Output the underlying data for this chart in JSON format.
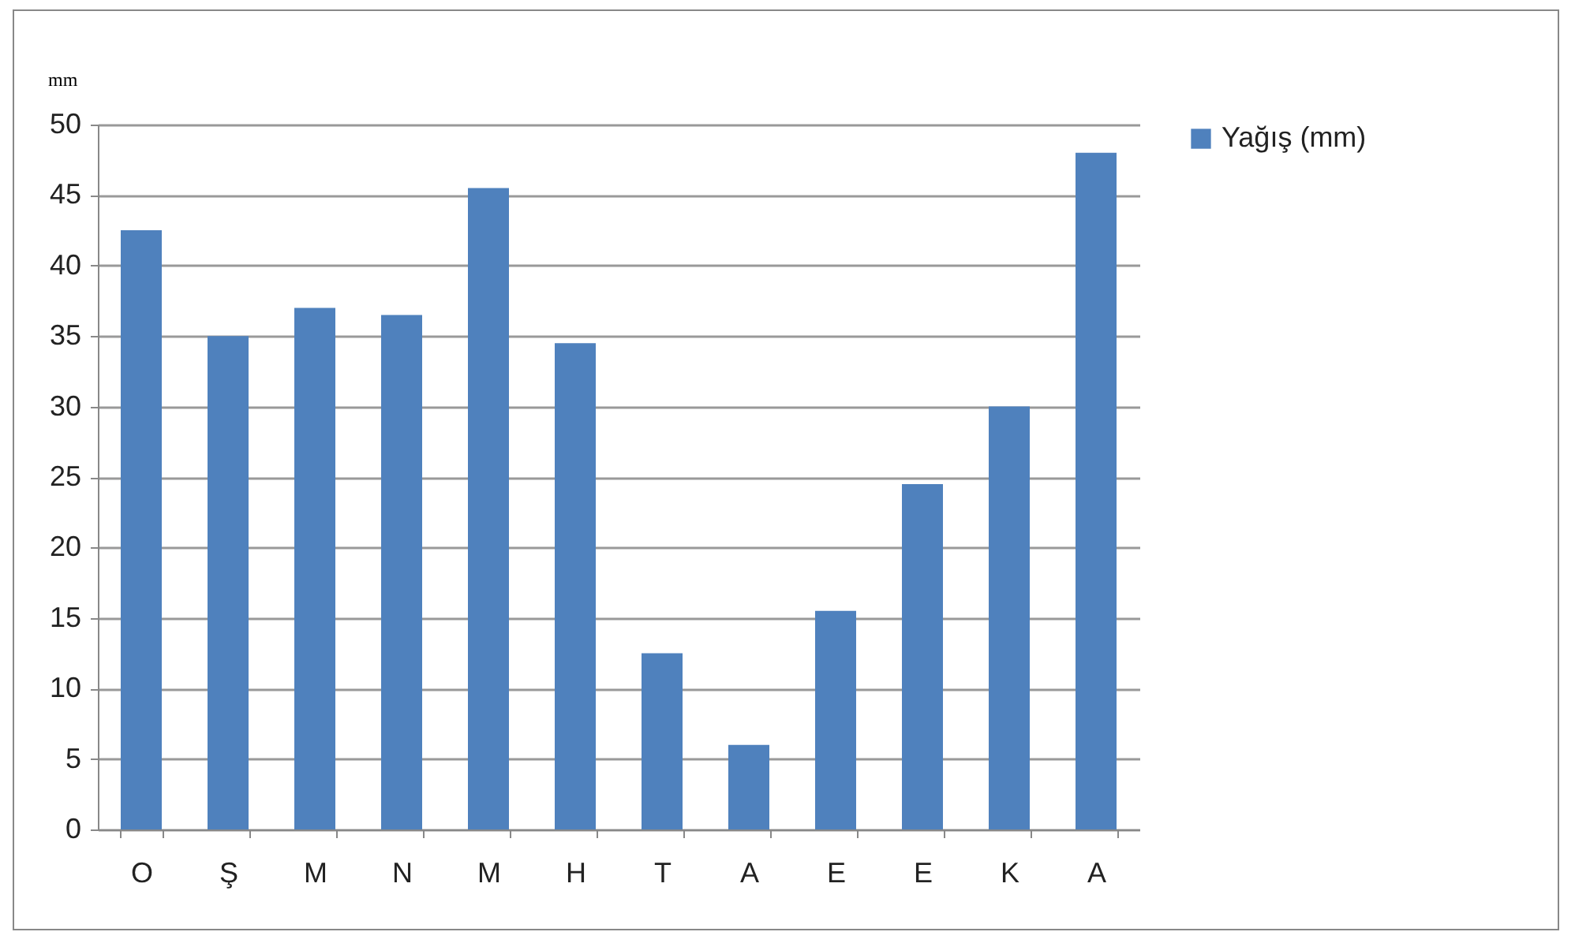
{
  "chart_data": {
    "type": "bar",
    "ylabel": "mm",
    "categories": [
      "O",
      "Ş",
      "M",
      "N",
      "M",
      "H",
      "T",
      "A",
      "E",
      "E",
      "K",
      "A"
    ],
    "series": [
      {
        "name": "Yağış (mm)",
        "color": "#4f81bd",
        "values": [
          42.5,
          35,
          37,
          36.5,
          45.5,
          34.5,
          12.5,
          6,
          15.5,
          24.5,
          30,
          48
        ]
      }
    ],
    "ylim": [
      0,
      50
    ],
    "yticks": [
      0,
      5,
      10,
      15,
      20,
      25,
      30,
      35,
      40,
      45,
      50
    ],
    "grid": "y",
    "legend": "right"
  }
}
